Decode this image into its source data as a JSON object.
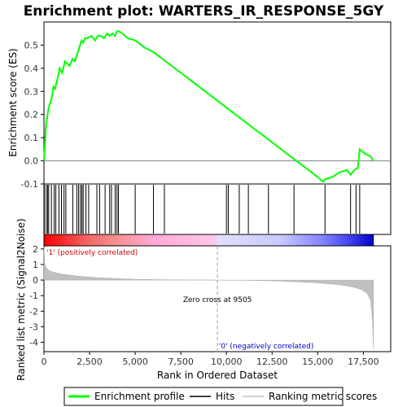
{
  "chart_data": {
    "type": "line",
    "title": "Enrichment plot: WARTERS_IR_RESPONSE_5GY",
    "top_panel": {
      "ylabel": "Enrichment score (ES)",
      "ylim": [
        -0.1,
        0.6
      ],
      "yticks": [
        "-0.1",
        "0.0",
        "0.1",
        "0.2",
        "0.3",
        "0.4",
        "0.5"
      ],
      "ytick_values": [
        -0.1,
        0.0,
        0.1,
        0.2,
        0.3,
        0.4,
        0.5
      ],
      "series": [
        {
          "name": "Enrichment profile",
          "color": "#00ff00",
          "x": [
            0,
            60,
            120,
            180,
            260,
            420,
            520,
            600,
            760,
            860,
            1000,
            1150,
            1400,
            1560,
            1700,
            1820,
            1900,
            1980,
            2060,
            2140,
            2250,
            2400,
            2600,
            2800,
            2950,
            3100,
            3300,
            3450,
            3600,
            3750,
            3900,
            4000,
            4100,
            4300,
            4600,
            5000,
            5500,
            6000,
            6500,
            7000,
            7500,
            8000,
            8500,
            9000,
            9505,
            10000,
            10500,
            11000,
            11500,
            12000,
            12500,
            13000,
            13500,
            14000,
            14500,
            15000,
            15300,
            15400,
            15800,
            16200,
            16600,
            16800,
            17000,
            17200,
            17300,
            17600,
            17900,
            18050
          ],
          "values": [
            0.0,
            0.08,
            0.16,
            0.19,
            0.23,
            0.27,
            0.32,
            0.31,
            0.36,
            0.4,
            0.38,
            0.43,
            0.41,
            0.44,
            0.43,
            0.46,
            0.48,
            0.5,
            0.52,
            0.51,
            0.53,
            0.53,
            0.54,
            0.52,
            0.54,
            0.54,
            0.53,
            0.55,
            0.54,
            0.55,
            0.54,
            0.56,
            0.56,
            0.55,
            0.53,
            0.52,
            0.49,
            0.47,
            0.44,
            0.41,
            0.38,
            0.35,
            0.32,
            0.29,
            0.26,
            0.23,
            0.2,
            0.17,
            0.14,
            0.11,
            0.08,
            0.05,
            0.02,
            -0.01,
            -0.04,
            -0.07,
            -0.09,
            -0.08,
            -0.07,
            -0.05,
            -0.04,
            -0.06,
            -0.04,
            -0.03,
            0.05,
            0.03,
            0.02,
            0.0
          ]
        }
      ]
    },
    "hits": [
      20,
      120,
      200,
      260,
      410,
      560,
      650,
      820,
      960,
      1100,
      1200,
      1580,
      1800,
      1900,
      2000,
      2080,
      2150,
      2300,
      2450,
      2900,
      3050,
      3350,
      3600,
      3700,
      3900,
      4000,
      4080,
      5000,
      6000,
      6600,
      10000,
      10100,
      10700,
      11200,
      12300,
      13700,
      15400,
      16800,
      17100,
      17300
    ],
    "bottom_panel": {
      "ylabel": "Ranked list metric (Signal2Noise)",
      "xlabel": "Rank in Ordered Dataset",
      "ylim": [
        -4.6,
        2.2
      ],
      "yticks": [
        "2",
        "1",
        "0",
        "-1",
        "-2",
        "-3",
        "-4"
      ],
      "ytick_values": [
        2,
        1,
        0,
        -1,
        -2,
        -3,
        -4
      ],
      "metric_x": [
        0,
        50,
        150,
        300,
        600,
        1000,
        1500,
        2000,
        3000,
        4000,
        5000,
        6000,
        7000,
        8000,
        9000,
        9505,
        10000,
        11000,
        12000,
        13000,
        14000,
        15000,
        16000,
        16500,
        17000,
        17400,
        17700,
        17900,
        18000,
        18050
      ],
      "metric_y": [
        2.1,
        1.0,
        0.75,
        0.6,
        0.48,
        0.38,
        0.3,
        0.24,
        0.15,
        0.09,
        0.05,
        0.03,
        0.015,
        0.008,
        0.003,
        0.0,
        -0.005,
        -0.02,
        -0.04,
        -0.07,
        -0.12,
        -0.18,
        -0.28,
        -0.36,
        -0.46,
        -0.62,
        -0.85,
        -1.3,
        -2.6,
        -4.4
      ],
      "zero_cross_label": "Zero cross at 9505",
      "zero_cross_value": 9505,
      "pos_label": "'1' (positively correlated)",
      "neg_label": "'0' (negatively correlated)"
    },
    "xlim": [
      0,
      19000
    ],
    "xticks": [
      "0",
      "2,500",
      "5,000",
      "7,500",
      "10,000",
      "12,500",
      "15,000",
      "17,500"
    ],
    "xtick_values": [
      0,
      2500,
      5000,
      7500,
      10000,
      12500,
      15000,
      17500
    ],
    "n_genes": 18050,
    "legend": {
      "placement": "bottom",
      "items": [
        {
          "label": "Enrichment profile",
          "color": "#00ff00"
        },
        {
          "label": "Hits",
          "color": "#000000"
        },
        {
          "label": "Ranking metric scores",
          "color": "#c0c0c0"
        }
      ]
    },
    "colors": {
      "pos_text": "#cc0000",
      "neg_text": "#0000cc",
      "metric_fill": "#c0c0c0",
      "zero_line": "#a0a0a0"
    }
  }
}
